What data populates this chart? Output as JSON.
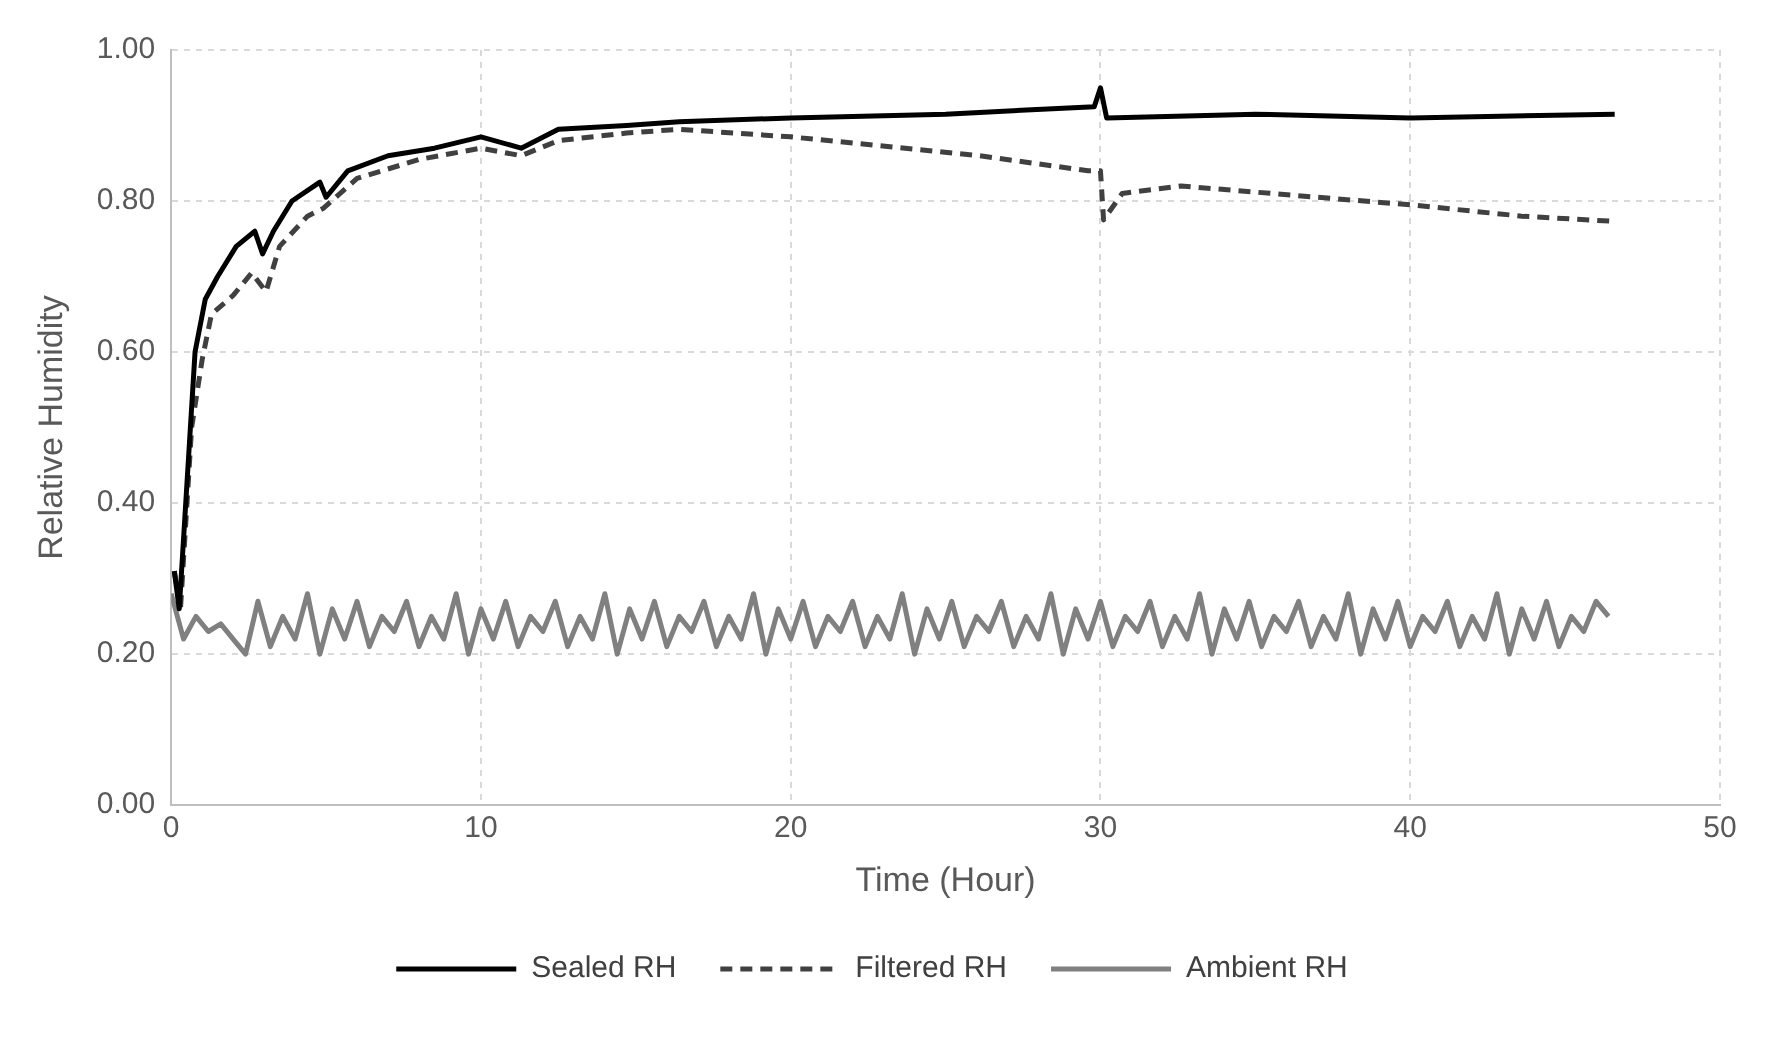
{
  "chart_data": {
    "type": "line",
    "xlabel": "Time (Hour)",
    "ylabel": "Relative Humidity",
    "xlim": [
      0,
      50
    ],
    "ylim": [
      0,
      1
    ],
    "xticks": [
      0,
      10,
      20,
      30,
      40,
      50
    ],
    "yticks": [
      {
        "value": 0,
        "label": "0.00"
      },
      {
        "value": 0.2,
        "label": "0.20"
      },
      {
        "value": 0.4,
        "label": "0.40"
      },
      {
        "value": 0.6,
        "label": "0.60"
      },
      {
        "value": 0.8,
        "label": "0.80"
      },
      {
        "value": 1,
        "label": "1.00"
      }
    ],
    "grid": true,
    "legend": "bottom",
    "marker": "none",
    "series": [
      {
        "name": "Sealed RH",
        "color": "#000000",
        "line_style": "solid",
        "x": [
          0.1,
          0.26,
          0.77,
          1.1,
          1.5,
          2.1,
          2.7,
          2.95,
          3.3,
          3.9,
          4.8,
          5.0,
          5.7,
          7.0,
          8.5,
          10,
          11.3,
          12.5,
          14.7,
          16.4,
          20,
          25,
          29.8,
          30.0,
          30.2,
          35,
          40,
          46.6
        ],
        "values": [
          0.31,
          0.26,
          0.6,
          0.67,
          0.7,
          0.74,
          0.76,
          0.73,
          0.76,
          0.8,
          0.825,
          0.805,
          0.84,
          0.86,
          0.87,
          0.885,
          0.87,
          0.895,
          0.9,
          0.905,
          0.91,
          0.915,
          0.925,
          0.95,
          0.91,
          0.915,
          0.91,
          0.915
        ]
      },
      {
        "name": "Filtered RH",
        "color": "#404040",
        "line_style": "dashed",
        "x": [
          0.1,
          0.3,
          0.66,
          1.0,
          1.3,
          2.0,
          2.6,
          3.06,
          3.5,
          4.4,
          4.9,
          6,
          8,
          10,
          11.3,
          12.5,
          14.7,
          16.4,
          20,
          26.1,
          29.6,
          30.0,
          30.1,
          30.7,
          32.6,
          37,
          40,
          43.6,
          46.6
        ],
        "values": [
          0.31,
          0.26,
          0.5,
          0.59,
          0.65,
          0.675,
          0.705,
          0.68,
          0.74,
          0.78,
          0.79,
          0.83,
          0.855,
          0.87,
          0.86,
          0.88,
          0.89,
          0.895,
          0.885,
          0.86,
          0.84,
          0.84,
          0.775,
          0.81,
          0.82,
          0.805,
          0.795,
          0.78,
          0.773
        ]
      },
      {
        "name": "Ambient RH",
        "color": "#808080",
        "line_style": "solid",
        "x": [
          0,
          0.4,
          0.8,
          1.2,
          1.6,
          2.0,
          2.4,
          2.8,
          3.2,
          3.6,
          4.0,
          4.4,
          4.8,
          5.2,
          5.6,
          6.0,
          6.4,
          6.8,
          7.2,
          7.6,
          8.0,
          8.4,
          8.8,
          9.2,
          9.6,
          10.0,
          10.4,
          10.8,
          11.2,
          11.6,
          12.0,
          12.4,
          12.8,
          13.2,
          13.6,
          14.0,
          14.4,
          14.8,
          15.2,
          15.6,
          16.0,
          16.4,
          16.8,
          17.2,
          17.6,
          18.0,
          18.4,
          18.8,
          19.2,
          19.6,
          20.0,
          20.4,
          20.8,
          21.2,
          21.6,
          22.0,
          22.4,
          22.8,
          23.2,
          23.6,
          24.0,
          24.4,
          24.8,
          25.2,
          25.6,
          26.0,
          26.4,
          26.8,
          27.2,
          27.6,
          28.0,
          28.4,
          28.8,
          29.2,
          29.6,
          30.0,
          30.4,
          30.8,
          31.2,
          31.6,
          32.0,
          32.4,
          32.8,
          33.2,
          33.6,
          34.0,
          34.4,
          34.8,
          35.2,
          35.6,
          36.0,
          36.4,
          36.8,
          37.2,
          37.6,
          38.0,
          38.4,
          38.8,
          39.2,
          39.6,
          40.0,
          40.4,
          40.8,
          41.2,
          41.6,
          42.0,
          42.4,
          42.8,
          43.2,
          43.6,
          44.0,
          44.4,
          44.8,
          45.2,
          45.6,
          46.0,
          46.4
        ],
        "values": [
          0.28,
          0.22,
          0.25,
          0.23,
          0.24,
          0.22,
          0.2,
          0.27,
          0.21,
          0.25,
          0.22,
          0.28,
          0.2,
          0.26,
          0.22,
          0.27,
          0.21,
          0.25,
          0.23,
          0.27,
          0.21,
          0.25,
          0.22,
          0.28,
          0.2,
          0.26,
          0.22,
          0.27,
          0.21,
          0.25,
          0.23,
          0.27,
          0.21,
          0.25,
          0.22,
          0.28,
          0.2,
          0.26,
          0.22,
          0.27,
          0.21,
          0.25,
          0.23,
          0.27,
          0.21,
          0.25,
          0.22,
          0.28,
          0.2,
          0.26,
          0.22,
          0.27,
          0.21,
          0.25,
          0.23,
          0.27,
          0.21,
          0.25,
          0.22,
          0.28,
          0.2,
          0.26,
          0.22,
          0.27,
          0.21,
          0.25,
          0.23,
          0.27,
          0.21,
          0.25,
          0.22,
          0.28,
          0.2,
          0.26,
          0.22,
          0.27,
          0.21,
          0.25,
          0.23,
          0.27,
          0.21,
          0.25,
          0.22,
          0.28,
          0.2,
          0.26,
          0.22,
          0.27,
          0.21,
          0.25,
          0.23,
          0.27,
          0.21,
          0.25,
          0.22,
          0.28,
          0.2,
          0.26,
          0.22,
          0.27,
          0.21,
          0.25,
          0.23,
          0.27,
          0.21,
          0.25,
          0.22,
          0.28,
          0.2,
          0.26,
          0.22,
          0.27,
          0.21,
          0.25,
          0.23,
          0.27,
          0.25
        ]
      }
    ]
  }
}
